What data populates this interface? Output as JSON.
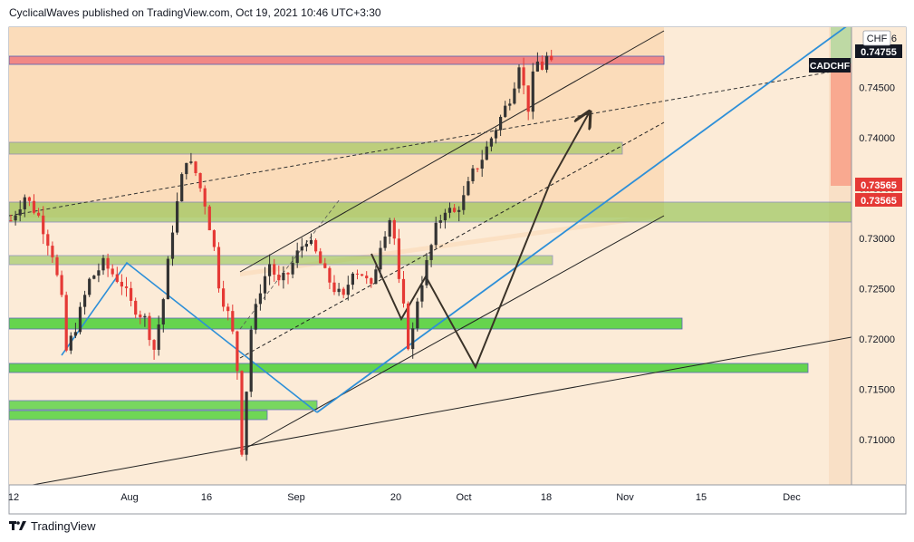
{
  "header": {
    "text": "CyclicalWaves published on TradingView.com, Oct 19, 2021 10:46 UTC+3:30"
  },
  "footer": {
    "brand": "TradingView"
  },
  "colors": {
    "background_zone": "#fad9b5",
    "box_green": "#8bc34a",
    "box_bright_green": "#4cd137",
    "box_red": "#f08080",
    "trend_blue": "#2d8fd8",
    "arrow": "#3a3228",
    "candle_up": "#333333",
    "candle_down": "#e53935"
  },
  "chart_data": {
    "type": "candlestick",
    "symbol": "CADCHF",
    "currency_label": "CHF",
    "x_ticks": [
      "12",
      "Aug",
      "16",
      "Sep",
      "20",
      "Oct",
      "18",
      "Nov",
      "15",
      "Dec"
    ],
    "y_ticks": [
      "0.71000",
      "0.71500",
      "0.72000",
      "0.72500",
      "0.73000",
      "0.73500",
      "0.74000",
      "0.74500"
    ],
    "ylim": [
      0.7055,
      0.751
    ],
    "price_labels": [
      {
        "value": "0.74755",
        "bg": "#131722",
        "fg": "#ffffff"
      },
      {
        "value": "0.73565",
        "bg": "#e53935",
        "fg": "#ffffff"
      },
      {
        "value": "0.73565",
        "bg": "#e53935",
        "fg": "#ffffff"
      }
    ],
    "symbol_tag": {
      "text": "CADCHF",
      "price": 0.7467
    },
    "partial_label": "6",
    "price_path": [
      [
        0,
        0.7318
      ],
      [
        3,
        0.7342
      ],
      [
        6,
        0.7322
      ],
      [
        9,
        0.7285
      ],
      [
        11,
        0.7238
      ],
      [
        12,
        0.7188
      ],
      [
        14,
        0.7212
      ],
      [
        17,
        0.7258
      ],
      [
        20,
        0.7275
      ],
      [
        22,
        0.7265
      ],
      [
        24,
        0.7255
      ],
      [
        26,
        0.7235
      ],
      [
        29,
        0.722
      ],
      [
        30,
        0.7205
      ],
      [
        31,
        0.719
      ],
      [
        33,
        0.724
      ],
      [
        35,
        0.731
      ],
      [
        37,
        0.736
      ],
      [
        38,
        0.738
      ],
      [
        40,
        0.7365
      ],
      [
        42,
        0.7335
      ],
      [
        44,
        0.729
      ],
      [
        45,
        0.7255
      ],
      [
        46,
        0.7238
      ],
      [
        47,
        0.7225
      ],
      [
        48,
        0.7205
      ],
      [
        49,
        0.717
      ],
      [
        49.5,
        0.712
      ],
      [
        50,
        0.709
      ],
      [
        51,
        0.715
      ],
      [
        52,
        0.721
      ],
      [
        54,
        0.725
      ],
      [
        56,
        0.7275
      ],
      [
        58,
        0.7255
      ],
      [
        60,
        0.7265
      ],
      [
        62,
        0.7285
      ],
      [
        64,
        0.73
      ],
      [
        66,
        0.7285
      ],
      [
        68,
        0.7265
      ],
      [
        70,
        0.725
      ],
      [
        72,
        0.724
      ],
      [
        74,
        0.727
      ],
      [
        76,
        0.7265
      ],
      [
        78,
        0.725
      ],
      [
        80,
        0.7295
      ],
      [
        82,
        0.732
      ],
      [
        83,
        0.73
      ],
      [
        84,
        0.7255
      ],
      [
        85,
        0.723
      ],
      [
        86,
        0.7195
      ],
      [
        87,
        0.7208
      ],
      [
        88,
        0.724
      ],
      [
        90,
        0.7275
      ],
      [
        92,
        0.731
      ],
      [
        94,
        0.733
      ],
      [
        96,
        0.7325
      ],
      [
        98,
        0.734
      ],
      [
        100,
        0.7365
      ],
      [
        102,
        0.738
      ],
      [
        104,
        0.74
      ],
      [
        106,
        0.742
      ],
      [
        108,
        0.744
      ],
      [
        109,
        0.7455
      ],
      [
        110,
        0.7475
      ],
      [
        111,
        0.745
      ],
      [
        112,
        0.743
      ],
      [
        113,
        0.746
      ],
      [
        114,
        0.7475
      ],
      [
        115,
        0.747
      ],
      [
        116,
        0.748
      ],
      [
        117,
        0.7472
      ]
    ]
  }
}
